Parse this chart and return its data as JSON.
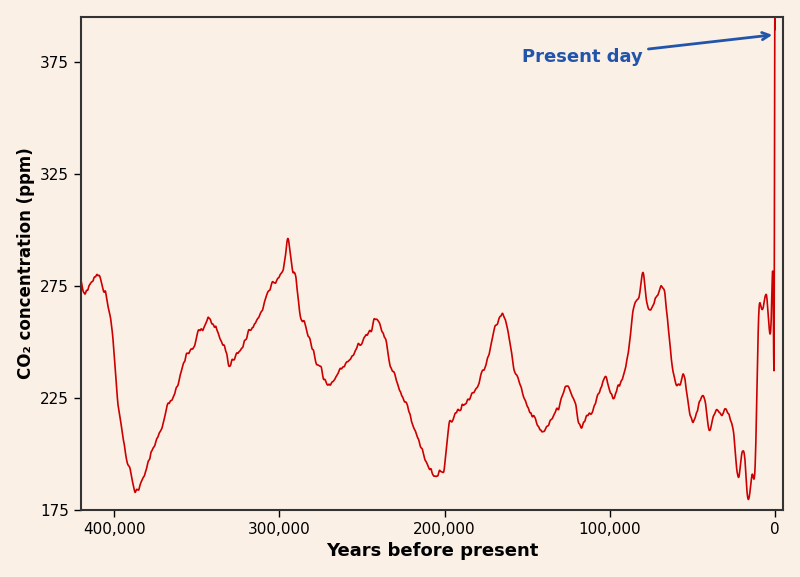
{
  "xlabel": "Years before present",
  "ylabel": "CO₂ concentration (ppm)",
  "xlim": [
    420000,
    -5000
  ],
  "ylim": [
    175,
    395
  ],
  "yticks": [
    175,
    225,
    275,
    325,
    375
  ],
  "xticks": [
    400000,
    300000,
    200000,
    100000,
    0
  ],
  "xticklabels": [
    "400,000",
    "300,000",
    "200,000",
    "100,000",
    "0"
  ],
  "line_color": "#cc0000",
  "background_color": "#faf0e6",
  "border_color": "#333333",
  "annotation_text": "Present day",
  "annotation_color": "#2255aa",
  "present_day_value": 387,
  "figsize": [
    8.0,
    5.77
  ],
  "dpi": 100
}
